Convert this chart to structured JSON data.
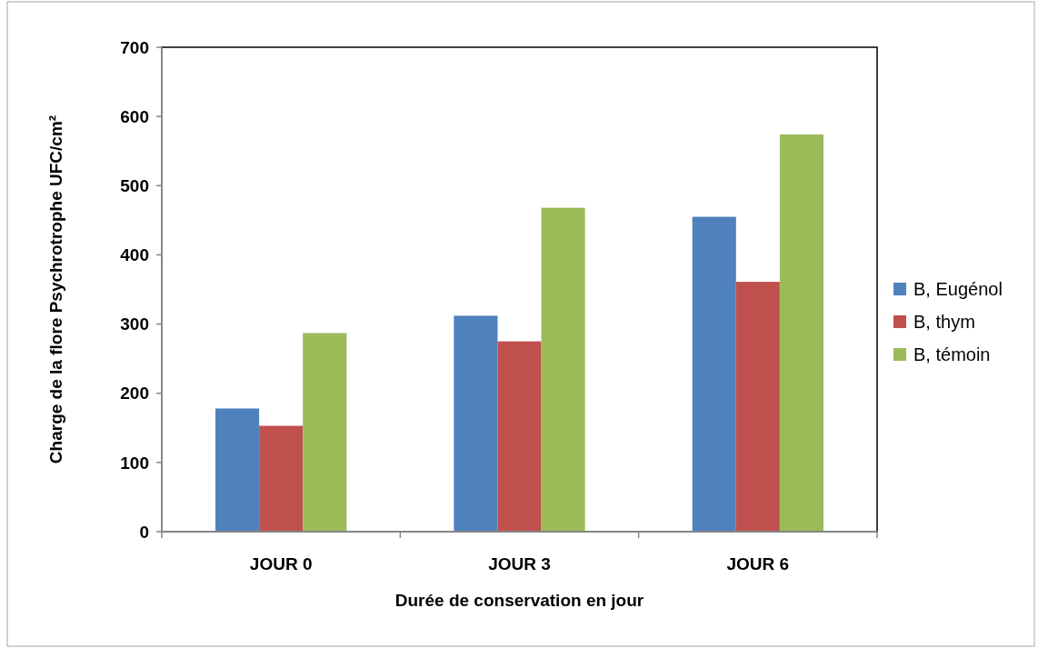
{
  "chart_data": {
    "type": "bar",
    "xlabel": "Durée de conservation en jour",
    "ylabel": "Charge de la flore Psychrotrophe UFC/cm²",
    "categories": [
      "JOUR 0",
      "JOUR 3",
      "JOUR 6"
    ],
    "series": [
      {
        "name": "B, Eugénol",
        "color": "#4f81bd",
        "values": [
          178,
          312,
          455
        ]
      },
      {
        "name": "B, thym",
        "color": "#c0504d",
        "values": [
          153,
          275,
          361
        ]
      },
      {
        "name": "B, témoin",
        "color": "#9bbb59",
        "values": [
          287,
          468,
          574
        ]
      }
    ],
    "ylim": [
      0,
      700
    ],
    "yticks": [
      0,
      100,
      200,
      300,
      400,
      500,
      600,
      700
    ],
    "grid": false,
    "legend": "right"
  }
}
